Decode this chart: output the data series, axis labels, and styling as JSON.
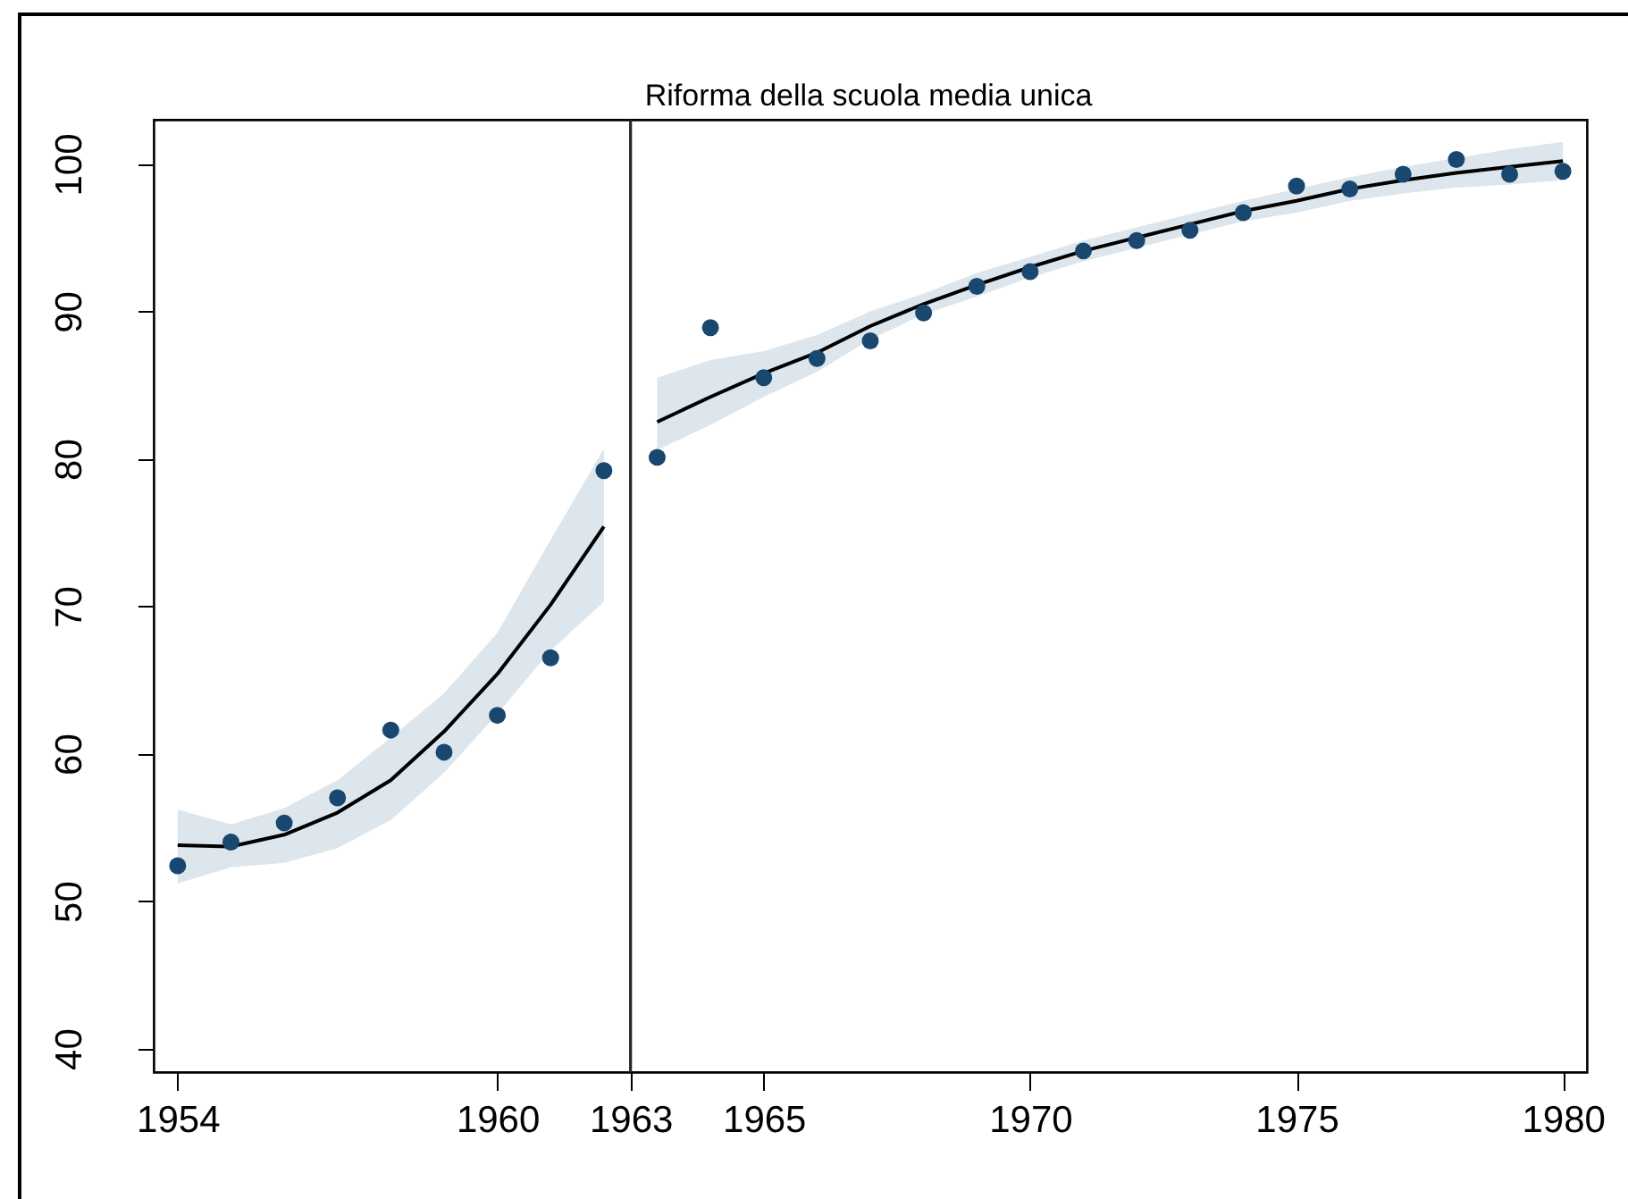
{
  "chart_data": {
    "type": "scatter",
    "x": [
      1954,
      1955,
      1956,
      1957,
      1958,
      1959,
      1960,
      1961,
      1962,
      1963,
      1964,
      1965,
      1966,
      1967,
      1968,
      1969,
      1970,
      1971,
      1972,
      1973,
      1974,
      1975,
      1976,
      1977,
      1978,
      1979,
      1980
    ],
    "series": [
      {
        "color": "#1a476f",
        "marker": "circle",
        "values": [
          52.4,
          54.0,
          55.3,
          57.0,
          61.6,
          60.1,
          62.6,
          66.5,
          79.2,
          80.1,
          88.9,
          85.5,
          86.8,
          88.0,
          89.9,
          91.7,
          92.7,
          94.1,
          94.8,
          95.5,
          96.7,
          98.5,
          98.3,
          99.3,
          100.3,
          99.3,
          99.5
        ]
      },
      {
        "type": "line",
        "color": "#000000",
        "x": [
          1954,
          1955,
          1956,
          1957,
          1958,
          1959,
          1960,
          1961,
          1962
        ],
        "values": [
          53.8,
          53.7,
          54.5,
          56.0,
          58.2,
          61.5,
          65.4,
          70.1,
          75.4
        ],
        "lower": [
          51.2,
          52.3,
          52.6,
          53.6,
          55.5,
          58.7,
          62.7,
          67.0,
          70.3
        ],
        "upper": [
          56.2,
          55.2,
          56.3,
          58.2,
          61.1,
          64.1,
          68.2,
          74.5,
          80.7
        ]
      },
      {
        "type": "line",
        "color": "#000000",
        "x": [
          1963,
          1964,
          1965,
          1966,
          1967,
          1968,
          1969,
          1970,
          1971,
          1972,
          1973,
          1974,
          1975,
          1976,
          1977,
          1978,
          1979,
          1980
        ],
        "values": [
          82.5,
          84.2,
          85.8,
          87.2,
          89.0,
          90.5,
          91.8,
          93.0,
          94.1,
          95.0,
          95.9,
          96.8,
          97.5,
          98.3,
          98.9,
          99.4,
          99.8,
          100.2
        ],
        "lower": [
          80.6,
          82.3,
          84.2,
          85.9,
          88.1,
          89.8,
          91.0,
          92.3,
          93.4,
          94.3,
          95.2,
          96.1,
          96.7,
          97.5,
          98.0,
          98.4,
          98.6,
          98.9
        ],
        "upper": [
          85.5,
          86.7,
          87.3,
          88.4,
          90.0,
          91.2,
          92.6,
          93.7,
          94.8,
          95.7,
          96.6,
          97.5,
          98.3,
          99.1,
          99.8,
          100.4,
          101.0,
          101.5
        ]
      }
    ],
    "xlim": [
      1953.55,
      1980.45
    ],
    "ylim": [
      38.4,
      103
    ],
    "xticks": [
      1954,
      1960,
      {
        "value": 1962.5,
        "label": "1963"
      },
      1965,
      1970,
      1975,
      1980
    ],
    "yticks": [
      40,
      50,
      60,
      70,
      80,
      90,
      100
    ],
    "ref_lines": [
      {
        "axis": "x",
        "value": 1962.5,
        "label": "Riforma della scuola media unica",
        "color": "#262626"
      }
    ]
  }
}
